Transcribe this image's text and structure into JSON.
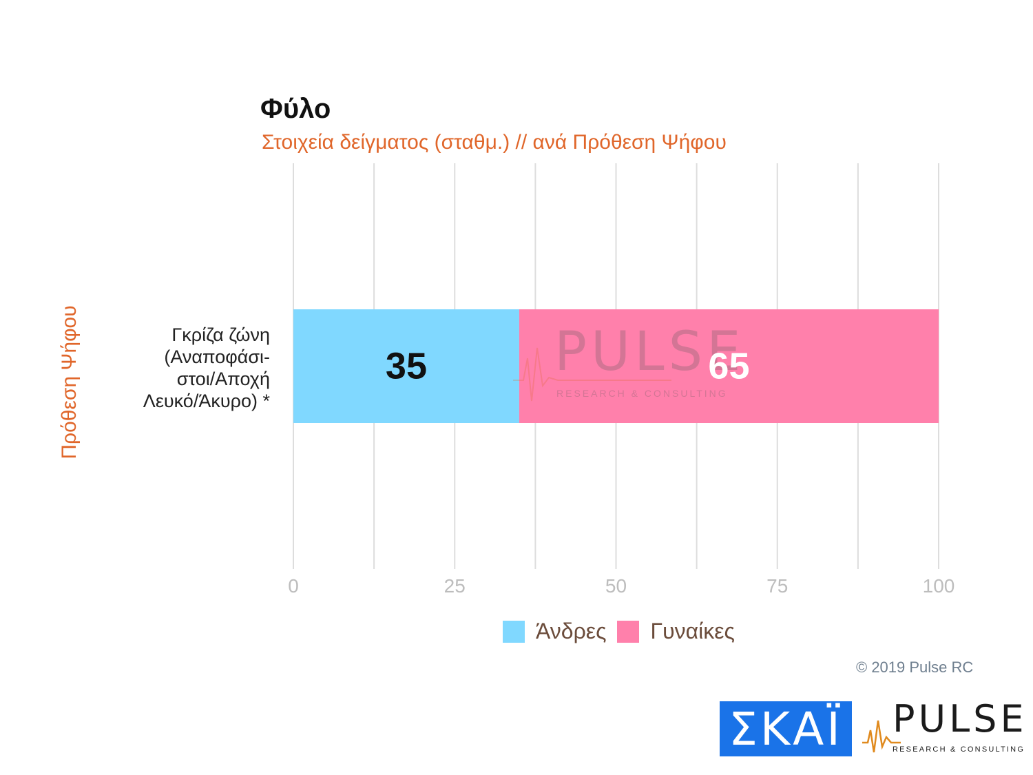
{
  "chart_data": {
    "type": "bar",
    "orientation": "horizontal",
    "stacked": true,
    "title": "Φύλο",
    "subtitle": "Στοιχεία δείγματος (σταθμ.) // ανά Πρόθεση Ψήφου",
    "ylabel": "Πρόθεση Ψήφου",
    "categories": [
      [
        "Γκρίζα ζώνη",
        "(Αναποφάσι-",
        "στοι/Αποχή",
        "Λευκό/Άκυρο) *"
      ]
    ],
    "series": [
      {
        "name": "Άνδρες",
        "values": [
          35
        ],
        "color": "#80d8ff"
      },
      {
        "name": "Γυναίκες",
        "values": [
          65
        ],
        "color": "#ff80ab"
      }
    ],
    "xlim": [
      0,
      100
    ],
    "xticks": [
      0,
      25,
      50,
      75,
      100
    ],
    "grid": true,
    "legend_position": "bottom"
  },
  "colors": {
    "subtitle": "#e0662a",
    "grid": "#dddddd",
    "tick_label": "#bdbdbd",
    "label_dark": "#111111",
    "label_light": "#ffffff"
  },
  "watermark": {
    "text": "PULSE",
    "tagline": "RESEARCH & CONSULTING"
  },
  "footer": {
    "copyright": "© 2019 Pulse RC"
  },
  "logos": {
    "skai": "ΣΚΑΪ",
    "pulse": "PULSE",
    "pulse_tagline": "RESEARCH & CONSULTING"
  }
}
